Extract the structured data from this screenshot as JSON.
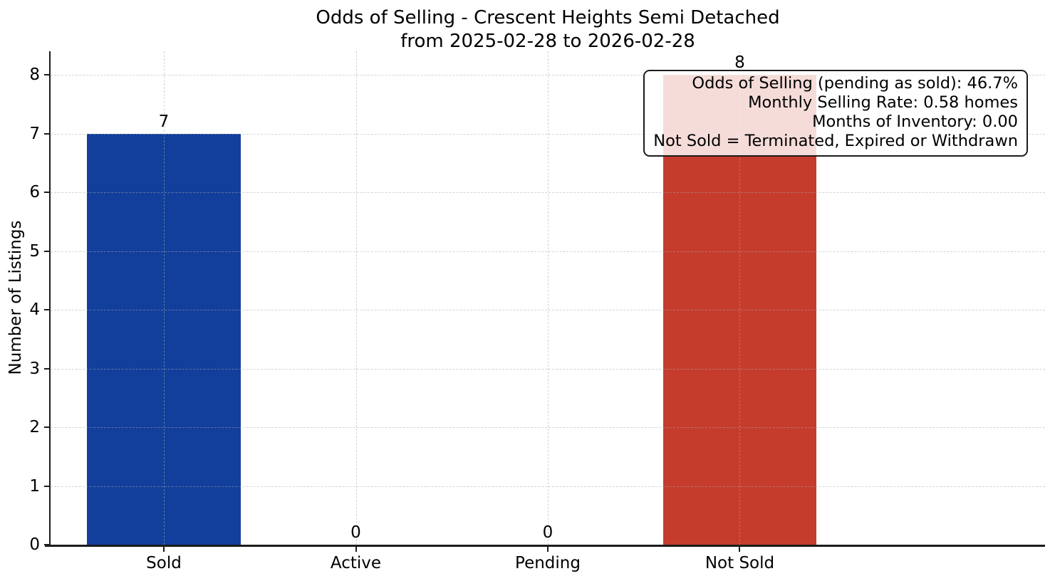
{
  "chart_data": {
    "type": "bar",
    "title": "Odds of Selling - Crescent Heights Semi Detached",
    "subtitle": "from 2025-02-28 to 2026-02-28",
    "categories": [
      "Sold",
      "Active",
      "Pending",
      "Not Sold"
    ],
    "values": [
      7,
      0,
      0,
      8
    ],
    "value_labels": [
      "7",
      "0",
      "0",
      "8"
    ],
    "bar_colors": [
      "#123f9c",
      null,
      null,
      "#c53c2c"
    ],
    "xlabel": "",
    "ylabel": "Number of Listings",
    "ylim": [
      0,
      8.4
    ],
    "yticks": [
      0,
      1,
      2,
      3,
      4,
      5,
      6,
      7,
      8
    ],
    "grid": true,
    "grid_style": "dashed",
    "legend": "none",
    "annotation": {
      "position": "top-right",
      "lines": [
        "Odds of Selling (pending as sold): 46.7%",
        "Monthly Selling Rate: 0.58 homes",
        "Months of Inventory: 0.00",
        "Not Sold = Terminated, Expired or Withdrawn"
      ]
    },
    "colors": {
      "sold_bar": "#123f9c",
      "not_sold_bar": "#c53c2c",
      "axis": "#1c1c1c",
      "grid": "#d5d5d5",
      "background": "#ffffff"
    }
  }
}
